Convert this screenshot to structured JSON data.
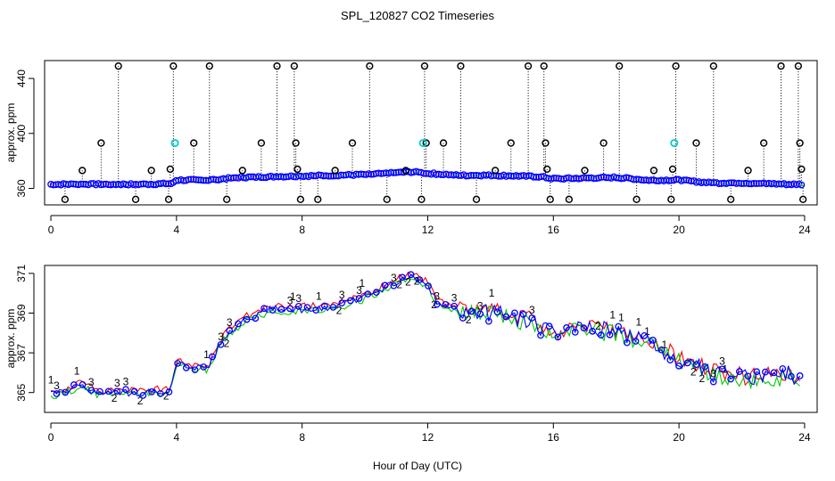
{
  "title": "SPL_120827  CO2 Timeseries",
  "xlabel": "Hour of Day (UTC)",
  "colors": {
    "blue": "#0000ff",
    "red": "#ff0000",
    "green": "#00cc00",
    "cyan": "#00cccc",
    "black": "#000000"
  },
  "chart_data": [
    {
      "type": "scatter",
      "panel": "top",
      "ylabel": "approx. ppm",
      "xlim": [
        -0.2,
        24.4
      ],
      "ylim": [
        348,
        453
      ],
      "xticks": [
        0,
        4,
        8,
        12,
        16,
        20,
        24
      ],
      "yticks": [
        360,
        400,
        440
      ],
      "markers": {
        "blue": "o",
        "cyan": "o",
        "black": "o"
      },
      "baseline_knots": [
        [
          0,
          363
        ],
        [
          1,
          363
        ],
        [
          2,
          363
        ],
        [
          3,
          363
        ],
        [
          3.85,
          363.5
        ],
        [
          4.0,
          366
        ],
        [
          5,
          366
        ],
        [
          6,
          368
        ],
        [
          8,
          369
        ],
        [
          10,
          370
        ],
        [
          11.5,
          372
        ],
        [
          12,
          371
        ],
        [
          13,
          369.5
        ],
        [
          14,
          369.5
        ],
        [
          15,
          369
        ],
        [
          15.6,
          368.5
        ],
        [
          16,
          367
        ],
        [
          18,
          368
        ],
        [
          19,
          366
        ],
        [
          20,
          366
        ],
        [
          21,
          364
        ],
        [
          22,
          364
        ],
        [
          23.5,
          363
        ],
        [
          23.8,
          363
        ]
      ],
      "outliers": [
        {
          "x": 0.45,
          "y": 352
        },
        {
          "x": 1.0,
          "y": 373
        },
        {
          "x": 1.6,
          "y": 393
        },
        {
          "x": 2.15,
          "y": 449
        },
        {
          "x": 2.7,
          "y": 352
        },
        {
          "x": 3.2,
          "y": 373
        },
        {
          "x": 3.75,
          "y": 352
        },
        {
          "x": 3.8,
          "y": 374
        },
        {
          "x": 3.9,
          "y": 449
        },
        {
          "x": 4.55,
          "y": 393
        },
        {
          "x": 5.05,
          "y": 449
        },
        {
          "x": 5.6,
          "y": 352
        },
        {
          "x": 6.1,
          "y": 373
        },
        {
          "x": 6.7,
          "y": 393
        },
        {
          "x": 7.2,
          "y": 449
        },
        {
          "x": 7.75,
          "y": 449
        },
        {
          "x": 7.8,
          "y": 393
        },
        {
          "x": 7.85,
          "y": 374
        },
        {
          "x": 7.95,
          "y": 352
        },
        {
          "x": 8.5,
          "y": 352
        },
        {
          "x": 9.05,
          "y": 373
        },
        {
          "x": 9.6,
          "y": 393
        },
        {
          "x": 10.15,
          "y": 449
        },
        {
          "x": 10.7,
          "y": 352
        },
        {
          "x": 11.3,
          "y": 373
        },
        {
          "x": 11.8,
          "y": 352
        },
        {
          "x": 11.9,
          "y": 449
        },
        {
          "x": 11.95,
          "y": 393
        },
        {
          "x": 12.5,
          "y": 393
        },
        {
          "x": 13.05,
          "y": 449
        },
        {
          "x": 13.55,
          "y": 352
        },
        {
          "x": 14.15,
          "y": 373
        },
        {
          "x": 14.65,
          "y": 393
        },
        {
          "x": 15.2,
          "y": 449
        },
        {
          "x": 15.7,
          "y": 449
        },
        {
          "x": 15.75,
          "y": 393
        },
        {
          "x": 15.8,
          "y": 374
        },
        {
          "x": 15.9,
          "y": 352
        },
        {
          "x": 16.5,
          "y": 352
        },
        {
          "x": 17.0,
          "y": 373
        },
        {
          "x": 17.6,
          "y": 393
        },
        {
          "x": 18.1,
          "y": 449
        },
        {
          "x": 18.65,
          "y": 352
        },
        {
          "x": 19.2,
          "y": 373
        },
        {
          "x": 19.75,
          "y": 352
        },
        {
          "x": 19.8,
          "y": 374
        },
        {
          "x": 19.9,
          "y": 449
        },
        {
          "x": 20.55,
          "y": 393
        },
        {
          "x": 21.1,
          "y": 449
        },
        {
          "x": 21.65,
          "y": 352
        },
        {
          "x": 22.2,
          "y": 373
        },
        {
          "x": 22.7,
          "y": 393
        },
        {
          "x": 23.25,
          "y": 449
        },
        {
          "x": 23.8,
          "y": 449
        },
        {
          "x": 23.85,
          "y": 393
        },
        {
          "x": 23.9,
          "y": 374
        },
        {
          "x": 23.95,
          "y": 352
        }
      ],
      "cyan_points": [
        {
          "x": 3.95,
          "y": 393
        },
        {
          "x": 11.85,
          "y": 393
        },
        {
          "x": 19.85,
          "y": 393
        }
      ]
    },
    {
      "type": "line",
      "panel": "bottom",
      "ylabel": "approx. ppm",
      "xlim": [
        -0.2,
        24.4
      ],
      "ylim": [
        364.0,
        371.4
      ],
      "xticks": [
        0,
        4,
        8,
        12,
        16,
        20,
        24
      ],
      "yticks": [
        365,
        367,
        369,
        371
      ],
      "series": [
        {
          "name": "1",
          "color": "red",
          "label_char": "1"
        },
        {
          "name": "2",
          "color": "green",
          "label_char": "2"
        },
        {
          "name": "3",
          "color": "blue",
          "label_char": "3"
        }
      ],
      "knots": [
        [
          0,
          364.9
        ],
        [
          0.5,
          365.1
        ],
        [
          1.0,
          365.4
        ],
        [
          1.5,
          365.0
        ],
        [
          2.0,
          365.0
        ],
        [
          3.0,
          365.0
        ],
        [
          3.8,
          365.1
        ],
        [
          4.0,
          366.6
        ],
        [
          4.5,
          366.3
        ],
        [
          5.0,
          366.2
        ],
        [
          5.5,
          367.8
        ],
        [
          6.2,
          368.7
        ],
        [
          7.0,
          369.2
        ],
        [
          8.0,
          369.2
        ],
        [
          9.0,
          369.3
        ],
        [
          10.0,
          369.8
        ],
        [
          11.4,
          370.9
        ],
        [
          12.0,
          370.5
        ],
        [
          12.3,
          369.5
        ],
        [
          13.0,
          369.1
        ],
        [
          14.0,
          369.0
        ],
        [
          15.0,
          368.7
        ],
        [
          16.0,
          368.0
        ],
        [
          17.0,
          368.3
        ],
        [
          18.0,
          368.1
        ],
        [
          19.0,
          367.5
        ],
        [
          20.0,
          366.7
        ],
        [
          21.0,
          366.0
        ],
        [
          22.0,
          365.7
        ],
        [
          23.0,
          365.8
        ],
        [
          23.5,
          365.9
        ],
        [
          23.8,
          365.5
        ]
      ],
      "hour_end": 23.85
    }
  ]
}
